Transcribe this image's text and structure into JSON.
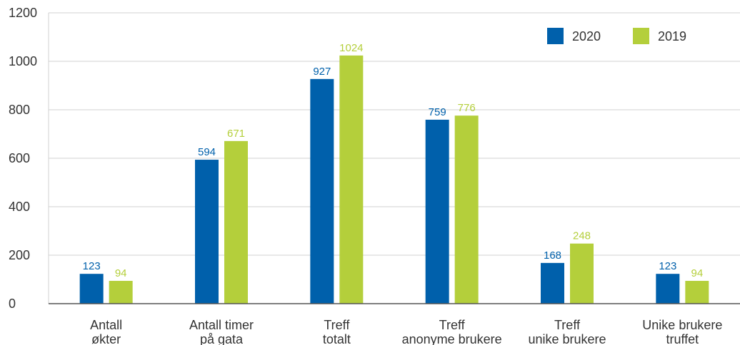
{
  "chart_data": {
    "type": "bar",
    "categories": [
      [
        "Antall",
        "økter"
      ],
      [
        "Antall timer",
        "på gata"
      ],
      [
        "Treff",
        "totalt"
      ],
      [
        "Treff",
        "anonyme brukere"
      ],
      [
        "Treff",
        "unike brukere"
      ],
      [
        "Unike brukere",
        "truffet"
      ]
    ],
    "series": [
      {
        "name": "2020",
        "color": "#0060AB",
        "values": [
          123,
          594,
          927,
          759,
          168,
          123
        ]
      },
      {
        "name": "2019",
        "color": "#B4CF3B",
        "values": [
          94,
          671,
          1024,
          776,
          248,
          94
        ]
      }
    ],
    "ylim": [
      0,
      1200
    ],
    "yticks": [
      0,
      200,
      400,
      600,
      800,
      1000,
      1200
    ],
    "grid": true,
    "legend": "top-right",
    "data_labels": true
  }
}
